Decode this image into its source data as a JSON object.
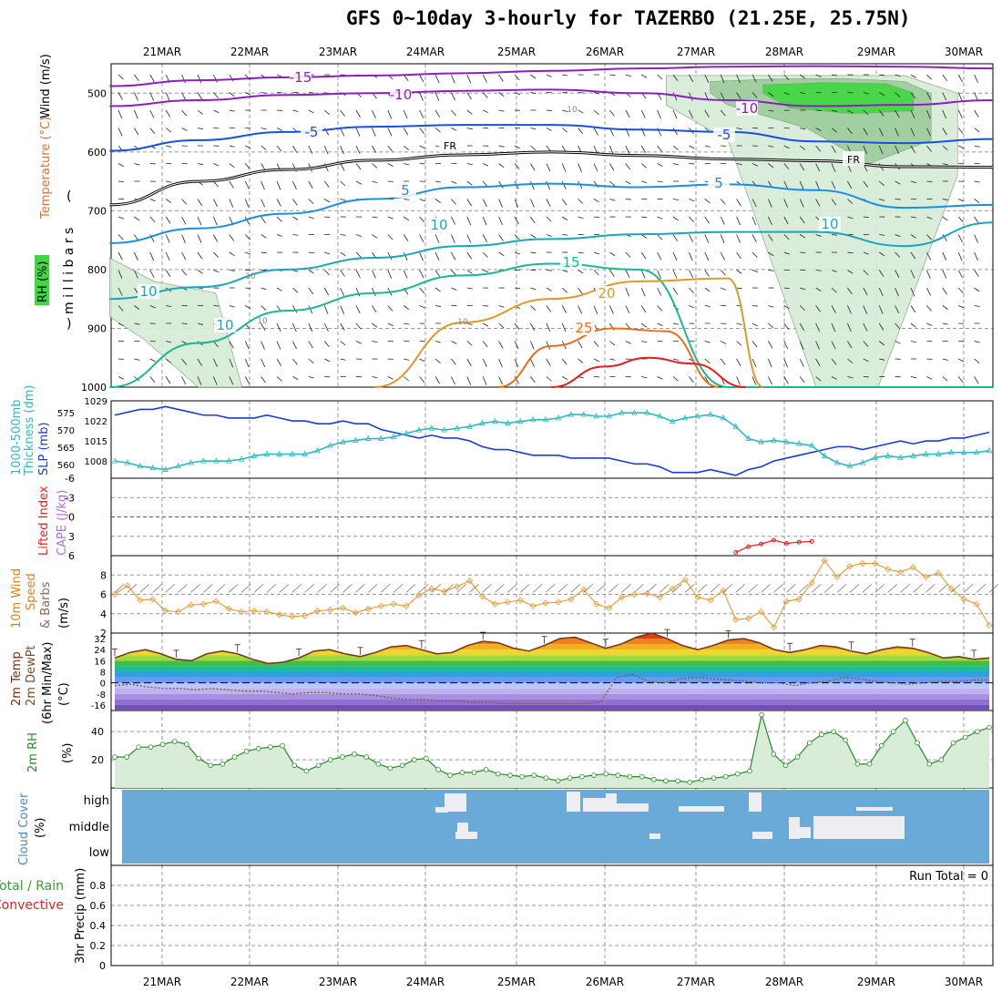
{
  "title": "GFS 0~10day 3-hourly for TAZERBO (21.25E, 25.75N)",
  "colors": {
    "grid": "#999999",
    "barb": "#222222",
    "iso_m15": "#8c1fbf",
    "iso_m10": "#8c1fbf",
    "iso_m5": "#1a4fe0",
    "iso_fr": "#000000",
    "iso_5": "#1a8fe0",
    "iso_10": "#1aa8b8",
    "iso_15": "#1ab890",
    "iso_20": "#d89a2a",
    "iso_25": "#e07020",
    "iso_30": "#e02020",
    "rh_light": "#d6ead6",
    "rh_mid": "#9ccc9c",
    "rh_dark": "#40d840",
    "slp": "#1a3fd0",
    "thickness": "#30b8c0",
    "li": "#e02020",
    "wind10": "#e89a30",
    "temp": "#7a3a1a",
    "dewpt": "#8a5a3a",
    "rh2m": "#2a8a2a",
    "rh2m_fill": "#d8ecd8",
    "cloud_fill": "#6aaad8",
    "cloud_clear": "#eeeef2"
  },
  "chart_data": [
    {
      "id": "upper-air",
      "type": "heatmap",
      "title": "",
      "xlabel": "",
      "x_ticks": [
        "21MAR",
        "22MAR",
        "23MAR",
        "24MAR",
        "25MAR",
        "26MAR",
        "27MAR",
        "28MAR",
        "29MAR",
        "30MAR"
      ],
      "ylabel": "(millibars)",
      "y_ticks": [
        "500",
        "600",
        "700",
        "800",
        "900",
        "1000"
      ],
      "ylim": [
        450,
        1000
      ],
      "legend_labels": [
        "Wind (m/s)",
        "Temperature (°C)",
        "RH (%)"
      ],
      "isotherm_labels": [
        "-15",
        "-10",
        "-10",
        "-5",
        "-5",
        "FR",
        "FR",
        "5",
        "5",
        "10",
        "10",
        "10",
        "10",
        "15",
        "20",
        "25"
      ],
      "rh_labels": [
        "10",
        "10",
        "10",
        "10"
      ],
      "isotherms": [
        {
          "name": "-15",
          "color_key": "iso_m15",
          "x": [
            0,
            1,
            2,
            3,
            4,
            5,
            6,
            7,
            8,
            9,
            10
          ],
          "p": [
            488,
            478,
            473,
            470,
            466,
            462,
            458,
            455,
            454,
            455,
            458
          ]
        },
        {
          "name": "-10",
          "color_key": "iso_m10",
          "x": [
            0,
            1,
            2,
            3,
            4,
            5,
            6,
            7,
            8,
            9,
            10
          ],
          "p": [
            522,
            512,
            503,
            500,
            496,
            494,
            500,
            512,
            522,
            520,
            512
          ]
        },
        {
          "name": "-5",
          "color_key": "iso_m5",
          "x": [
            0,
            1,
            2,
            3,
            4,
            5,
            6,
            7,
            8,
            9,
            10
          ],
          "p": [
            598,
            580,
            566,
            557,
            554,
            554,
            562,
            566,
            582,
            585,
            578
          ]
        },
        {
          "name": "FR",
          "color_key": "iso_fr",
          "x": [
            0,
            1,
            2,
            3,
            4,
            5,
            6,
            7,
            8,
            9,
            10
          ],
          "p": [
            690,
            650,
            630,
            614,
            605,
            600,
            606,
            612,
            615,
            625,
            626
          ]
        },
        {
          "name": "5",
          "color_key": "iso_5",
          "x": [
            0,
            1,
            2,
            3,
            4,
            5,
            6,
            7,
            8,
            9,
            10
          ],
          "p": [
            755,
            730,
            705,
            680,
            660,
            654,
            660,
            655,
            665,
            695,
            690
          ]
        },
        {
          "name": "10",
          "color_key": "iso_10",
          "x": [
            0,
            1,
            2,
            3,
            4,
            5,
            6,
            7,
            8,
            9,
            10
          ],
          "p": [
            850,
            830,
            800,
            780,
            760,
            748,
            740,
            736,
            736,
            760,
            720
          ]
        },
        {
          "name": "15",
          "color_key": "iso_15",
          "x": [
            0,
            1,
            2,
            3,
            4,
            5,
            6,
            7,
            8,
            9,
            10
          ],
          "p": [
            1000,
            925,
            870,
            840,
            810,
            790,
            800,
            1000,
            1000,
            1000,
            1000
          ]
        },
        {
          "name": "20",
          "color_key": "iso_20",
          "x": [
            3,
            4,
            5,
            6,
            7,
            7.4
          ],
          "p": [
            1000,
            890,
            850,
            820,
            815,
            1000
          ]
        },
        {
          "name": "25",
          "color_key": "iso_25",
          "x": [
            4.4,
            5,
            5.7,
            6.3,
            6.9
          ],
          "p": [
            1000,
            930,
            900,
            905,
            1000
          ]
        },
        {
          "name": "30",
          "color_key": "iso_30",
          "x": [
            5.0,
            5.6,
            6.1,
            6.6,
            7.2
          ],
          "p": [
            1000,
            965,
            950,
            960,
            1000
          ]
        }
      ],
      "rh_shading": [
        {
          "level": "light",
          "x": [
            6.3,
            7,
            8,
            9,
            9.6,
            9.6,
            8.7,
            8,
            7,
            6.3
          ],
          "p": [
            470,
            470,
            470,
            470,
            500,
            640,
            1000,
            1000,
            580,
            520
          ]
        },
        {
          "level": "mid",
          "x": [
            6.8,
            7.5,
            8.3,
            9,
            9.3,
            9.3,
            8.6,
            7.9,
            7,
            6.8
          ],
          "p": [
            480,
            476,
            475,
            480,
            500,
            580,
            620,
            560,
            520,
            500
          ]
        },
        {
          "level": "dark",
          "x": [
            7.4,
            8.1,
            8.8,
            9.1,
            9.1,
            8.4,
            7.7,
            7.4
          ],
          "p": [
            486,
            482,
            484,
            500,
            530,
            535,
            525,
            500
          ]
        },
        {
          "level": "light",
          "x": [
            0,
            0.5,
            1.2,
            1.5,
            1,
            0.4,
            0
          ],
          "p": [
            780,
            820,
            840,
            1000,
            1000,
            920,
            880
          ]
        }
      ]
    },
    {
      "id": "slp-thickness",
      "type": "line",
      "x_ticks": [
        "21MAR",
        "22MAR",
        "23MAR",
        "24MAR",
        "25MAR",
        "26MAR",
        "27MAR",
        "28MAR",
        "29MAR",
        "30MAR"
      ],
      "ylabel_left": "1000-500mb Thickness (dm)",
      "ylabel_right": "SLP (mb)",
      "left_ticks": [
        "575",
        "570",
        "565",
        "560"
      ],
      "right_ticks": [
        "1029",
        "1022",
        "1015",
        "1008"
      ],
      "ylim_slp": [
        1002,
        1029
      ],
      "series": [
        {
          "name": "SLP (mb)",
          "color_key": "slp",
          "axis": "right",
          "values": [
            1024,
            1025,
            1026,
            1026,
            1027,
            1026,
            1025,
            1024,
            1024,
            1023,
            1023,
            1023,
            1024,
            1023,
            1022,
            1022,
            1021,
            1021,
            1022,
            1021,
            1021,
            1019,
            1018,
            1017,
            1016,
            1017,
            1016,
            1016,
            1015,
            1013,
            1012,
            1012,
            1011,
            1010,
            1010,
            1010,
            1009,
            1009,
            1009,
            1009,
            1008,
            1007,
            1007,
            1006,
            1004,
            1004,
            1004,
            1005,
            1004,
            1003,
            1005,
            1006,
            1008,
            1009,
            1010,
            1011,
            1012,
            1013,
            1013,
            1012,
            1013,
            1014,
            1015,
            1014,
            1015,
            1015,
            1016,
            1016,
            1017,
            1018
          ]
        },
        {
          "name": "1000-500mb Thickness (dm)",
          "color_key": "thickness",
          "axis": "left",
          "values": [
            561,
            560.5,
            559.5,
            559,
            558.5,
            559.5,
            560.5,
            561,
            561,
            561,
            561.5,
            562.5,
            563,
            563,
            563,
            563,
            564,
            565.5,
            566.5,
            567,
            567.5,
            567.5,
            568,
            569,
            570,
            570.5,
            570,
            570.5,
            571,
            572,
            572.5,
            572,
            572.5,
            573,
            573,
            573.5,
            574.5,
            574.5,
            574,
            574,
            575,
            575,
            575,
            574,
            572.5,
            573.5,
            574,
            574.5,
            573.5,
            571,
            567.5,
            566.5,
            567,
            566.5,
            566,
            565.5,
            562.5,
            560.5,
            559.5,
            560.5,
            562,
            562.5,
            562,
            562.5,
            563,
            563,
            563.5,
            563.5,
            563.5,
            564
          ]
        }
      ]
    },
    {
      "id": "cape-li",
      "type": "line",
      "ylabel_left": "Lifted Index",
      "ylabel_right": "CAPE (J/kg)",
      "y_ticks": [
        "-6",
        "-3",
        "0",
        "3",
        "6"
      ],
      "ylim": [
        -6,
        6
      ],
      "series": [
        {
          "name": "Lifted Index",
          "color_key": "li",
          "x_index": [
            49,
            50,
            51,
            52,
            53,
            54,
            55
          ],
          "values": [
            5.5,
            4.6,
            4.2,
            3.6,
            4.1,
            3.9,
            3.8
          ]
        }
      ]
    },
    {
      "id": "wind10m",
      "type": "line",
      "ylabel": "10m Wind Speed & Barbs (m/s)",
      "y_ticks": [
        "2",
        "4",
        "6",
        "8"
      ],
      "ylim": [
        2,
        10
      ],
      "series": [
        {
          "name": "10m Wind Speed",
          "color_key": "wind10",
          "values": [
            6,
            6.9,
            5.4,
            5.5,
            4.3,
            4.2,
            4.9,
            5.0,
            5.3,
            4.5,
            4.2,
            4.3,
            4.2,
            3.9,
            3.7,
            3.8,
            4.3,
            4.4,
            4.6,
            4.1,
            4.5,
            4.8,
            5.0,
            4.8,
            5.9,
            6.6,
            6.3,
            6.8,
            7.4,
            5.8,
            5.0,
            5.2,
            5.4,
            4.8,
            5.1,
            5.2,
            5.5,
            6.5,
            5.0,
            4.6,
            5.7,
            6.0,
            6.1,
            5.7,
            6.6,
            7.5,
            5.7,
            5.4,
            6.4,
            3.4,
            3.5,
            4.2,
            2.6,
            5.3,
            5.5,
            7.2,
            9.5,
            7.8,
            8.9,
            9.2,
            9.2,
            8.6,
            8.3,
            8.8,
            7.8,
            8.2,
            6.6,
            5.5,
            5.0,
            2.8
          ]
        }
      ]
    },
    {
      "id": "temp2m",
      "type": "line",
      "ylabel": "2m Temp 2m DewPt (6hr Min/Max) (°C)",
      "y_ticks": [
        "32",
        "24",
        "16",
        "8",
        "0",
        "-8",
        "-16"
      ],
      "ylim": [
        -20,
        36
      ],
      "series": [
        {
          "name": "2m Temp",
          "color_key": "temp",
          "values": [
            18,
            22,
            24,
            21,
            17,
            16,
            21,
            23,
            21,
            17,
            14,
            15,
            18,
            23,
            24,
            21,
            19,
            22,
            26,
            27,
            24,
            21,
            22,
            27,
            30,
            29,
            25,
            23,
            27,
            32,
            33,
            29,
            25,
            28,
            33,
            36,
            32,
            27,
            24,
            27,
            31,
            32,
            29,
            24,
            22,
            24,
            27,
            26,
            23,
            21,
            24,
            26,
            25,
            22,
            18,
            19,
            17,
            18
          ]
        },
        {
          "name": "2m DewPt",
          "color_key": "dewpt",
          "values": [
            -2,
            -1,
            -3,
            -4,
            -4,
            -5,
            -4,
            -5,
            -6,
            -6,
            -7,
            -8,
            -7,
            -7,
            -8,
            -8,
            -9,
            -11,
            -12,
            -12,
            -13,
            -13,
            -14,
            -14,
            -15,
            -15,
            -15,
            -15,
            -15,
            -15,
            -14,
            4,
            6,
            1,
            0,
            3,
            4,
            3,
            2,
            1,
            0,
            0,
            -2,
            0,
            1,
            4,
            3,
            1,
            0,
            -1,
            0,
            1,
            1,
            2,
            2
          ]
        }
      ]
    },
    {
      "id": "rh2m",
      "type": "area",
      "ylabel": "2m RH (%)",
      "y_ticks": [
        "40",
        "20"
      ],
      "ylim": [
        0,
        55
      ],
      "series": [
        {
          "name": "2m RH",
          "color_key": "rh2m",
          "values": [
            22,
            22,
            29,
            29,
            31,
            33,
            31,
            21,
            16,
            17,
            22,
            26,
            28,
            29,
            30,
            16,
            12,
            16,
            20,
            22,
            24,
            22,
            17,
            14,
            16,
            20,
            21,
            13,
            9,
            11,
            11,
            13,
            10,
            9,
            8,
            9,
            7,
            5,
            7,
            8,
            9,
            10,
            9,
            8,
            8,
            6,
            5,
            5,
            4,
            6,
            7,
            8,
            10,
            12,
            52,
            24,
            16,
            22,
            32,
            38,
            40,
            34,
            17,
            17,
            30,
            40,
            48,
            32,
            17,
            20,
            32,
            36,
            40,
            43
          ]
        }
      ]
    },
    {
      "id": "cloud",
      "type": "heatmap",
      "ylabel": "Cloud Cover (%)",
      "y_ticks": [
        "high",
        "middle",
        "low"
      ]
    },
    {
      "id": "precip",
      "type": "bar",
      "ylabel": "3hr Precip (mm)",
      "legend_labels": [
        "Total / Rain",
        "Convective"
      ],
      "y_ticks": [
        "0.8",
        "0.6",
        "0.4",
        "0.2",
        "0"
      ],
      "ylim": [
        0,
        1
      ],
      "annotation": "Run Total = 0",
      "values": []
    }
  ]
}
